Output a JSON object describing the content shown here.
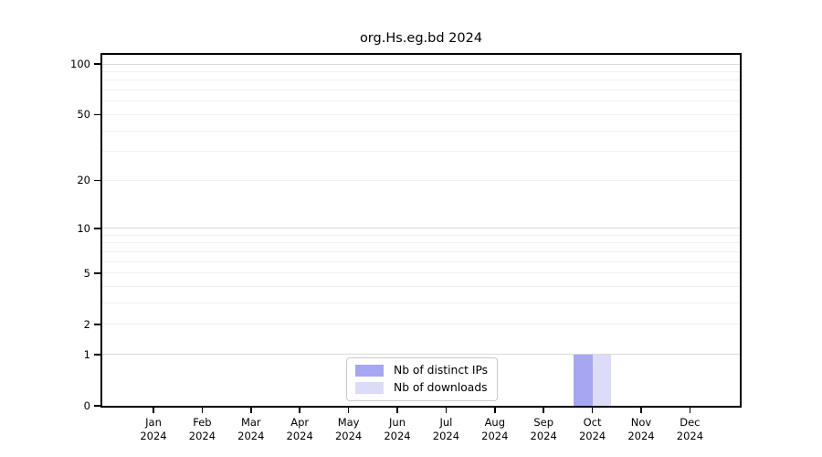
{
  "chart_data": {
    "type": "bar",
    "title": "org.Hs.eg.bd 2024",
    "year_label": "2024",
    "categories": [
      "Jan",
      "Feb",
      "Mar",
      "Apr",
      "May",
      "Jun",
      "Jul",
      "Aug",
      "Sep",
      "Oct",
      "Nov",
      "Dec"
    ],
    "series": [
      {
        "name": "Nb of distinct IPs",
        "color": "#a6a6f2",
        "values": [
          0,
          0,
          0,
          0,
          0,
          0,
          0,
          0,
          0,
          1,
          0,
          0
        ]
      },
      {
        "name": "Nb of downloads",
        "color": "#dcdcf8",
        "values": [
          0,
          0,
          0,
          0,
          0,
          0,
          0,
          0,
          0,
          1,
          0,
          0
        ]
      }
    ],
    "y_axis": {
      "scale": "log1p",
      "tick_values": [
        0,
        1,
        2,
        5,
        10,
        20,
        50,
        100
      ],
      "major_gridlines": [
        1,
        10,
        100
      ],
      "minor_gridlines": [
        2,
        3,
        4,
        5,
        6,
        7,
        8,
        9,
        20,
        30,
        40,
        50,
        60,
        70,
        80,
        90
      ],
      "range": [
        0,
        113
      ]
    },
    "x_axis": {
      "label_lines": 2
    },
    "grid": true,
    "legend_position": "inside-bottom-center"
  }
}
